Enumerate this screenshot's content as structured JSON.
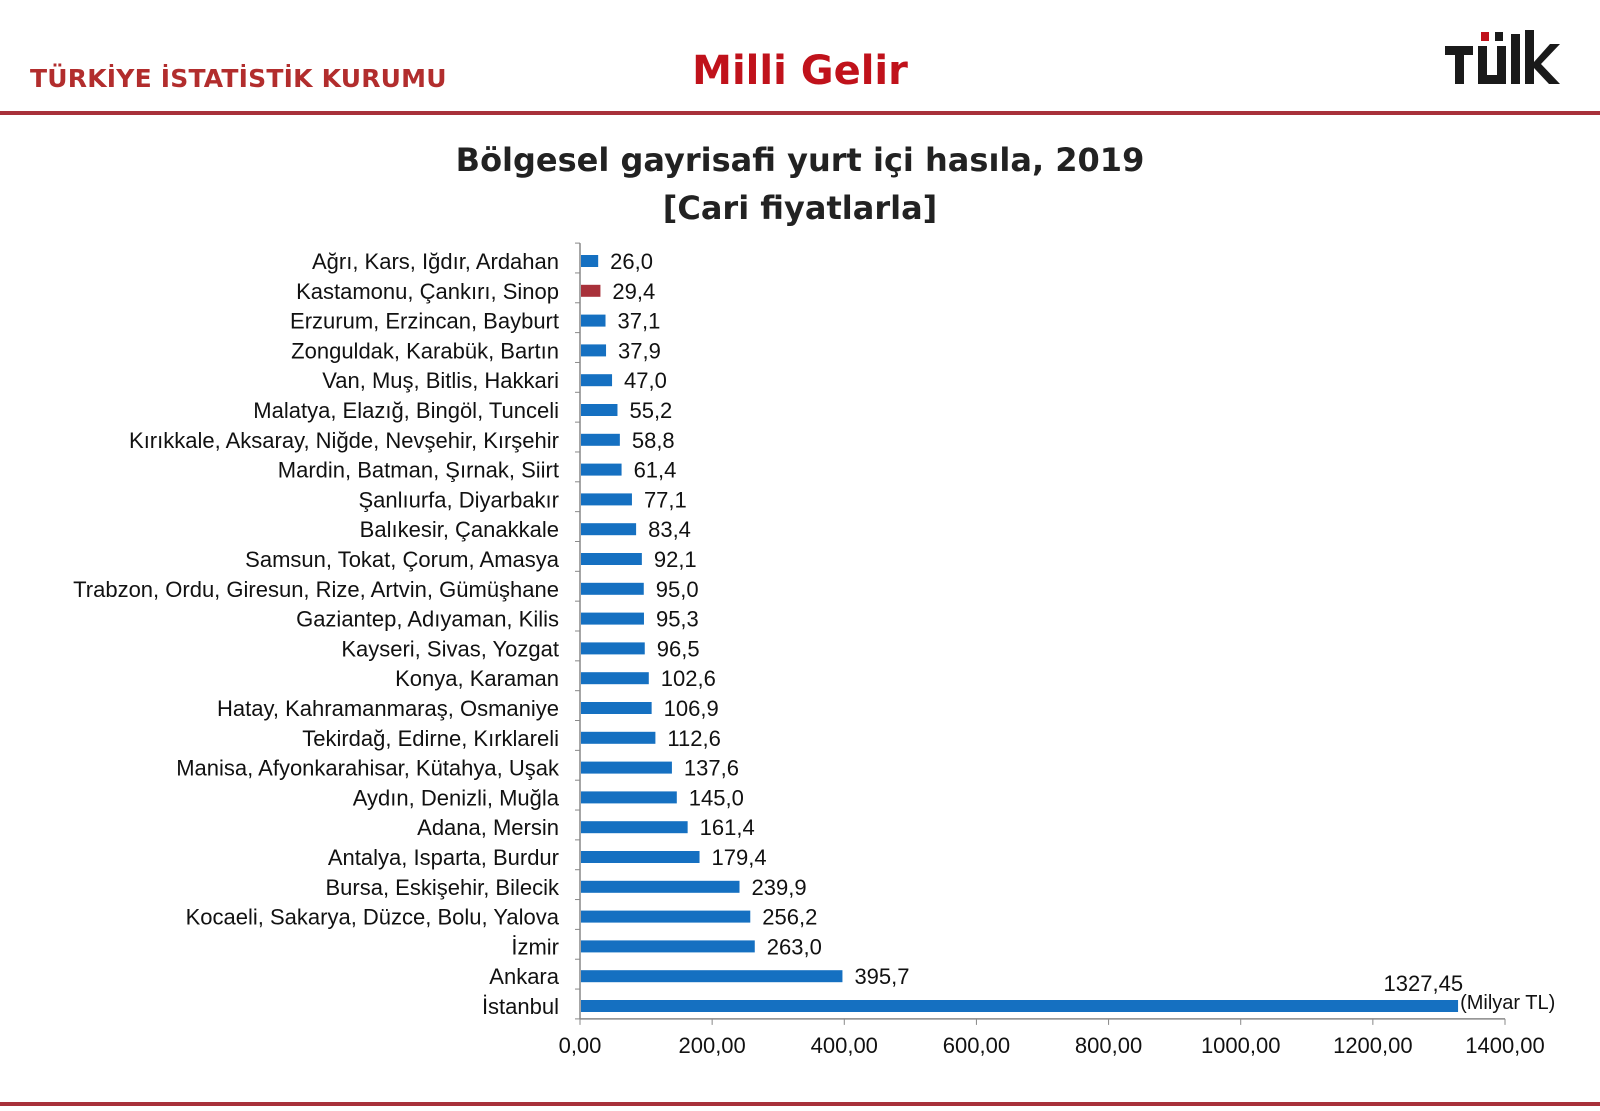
{
  "header": {
    "org_name": "TÜRKİYE İSTATİSTİK KURUMU",
    "page_title": "Milli Gelir",
    "logo_text": "TÜİK"
  },
  "colors": {
    "bar": "#1570c1",
    "highlight_bar": "#a8313a",
    "rule": "#a8313a",
    "title_red": "#c0121b"
  },
  "chart_data": {
    "type": "bar",
    "orientation": "horizontal",
    "title": "Bölgesel gayrisafi yurt içi hasıla, 2019",
    "subtitle": "[Cari fiyatlarla]",
    "unit_label": "(Milyar TL)",
    "categories": [
      "Ağrı, Kars, Iğdır, Ardahan",
      "Kastamonu, Çankırı, Sinop",
      "Erzurum, Erzincan, Bayburt",
      "Zonguldak, Karabük, Bartın",
      "Van, Muş, Bitlis, Hakkari",
      "Malatya, Elazığ, Bingöl, Tunceli",
      "Kırıkkale, Aksaray, Niğde, Nevşehir, Kırşehir",
      "Mardin, Batman, Şırnak, Siirt",
      "Şanlıurfa, Diyarbakır",
      "Balıkesir, Çanakkale",
      "Samsun, Tokat, Çorum, Amasya",
      "Trabzon, Ordu, Giresun, Rize, Artvin, Gümüşhane",
      "Gaziantep, Adıyaman, Kilis",
      "Kayseri, Sivas, Yozgat",
      "Konya, Karaman",
      "Hatay, Kahramanmaraş, Osmaniye",
      "Tekirdağ, Edirne, Kırklareli",
      "Manisa, Afyonkarahisar, Kütahya, Uşak",
      "Aydın, Denizli, Muğla",
      "Adana, Mersin",
      "Antalya, Isparta, Burdur",
      "Bursa, Eskişehir, Bilecik",
      "Kocaeli, Sakarya, Düzce, Bolu, Yalova",
      "İzmir",
      "Ankara",
      "İstanbul"
    ],
    "values": [
      26.0,
      29.4,
      37.1,
      37.9,
      47.0,
      55.2,
      58.8,
      61.4,
      77.1,
      83.4,
      92.1,
      95.0,
      95.3,
      96.5,
      102.6,
      106.9,
      112.6,
      137.6,
      145.0,
      161.4,
      179.4,
      239.9,
      256.2,
      263.0,
      395.7,
      1327.45
    ],
    "value_labels": [
      "26,0",
      "29,4",
      "37,1",
      "37,9",
      "47,0",
      "55,2",
      "58,8",
      "61,4",
      "77,1",
      "83,4",
      "92,1",
      "95,0",
      "95,3",
      "96,5",
      "102,6",
      "106,9",
      "112,6",
      "137,6",
      "145,0",
      "161,4",
      "179,4",
      "239,9",
      "256,2",
      "263,0",
      "395,7",
      "1327,45"
    ],
    "highlight_index": 1,
    "xlim": [
      0,
      1400
    ],
    "x_ticks": [
      0,
      200,
      400,
      600,
      800,
      1000,
      1200,
      1400
    ],
    "x_tick_labels": [
      "0,00",
      "200,00",
      "400,00",
      "600,00",
      "800,00",
      "1000,00",
      "1200,00",
      "1400,00"
    ],
    "grid": false,
    "legend": "none"
  }
}
